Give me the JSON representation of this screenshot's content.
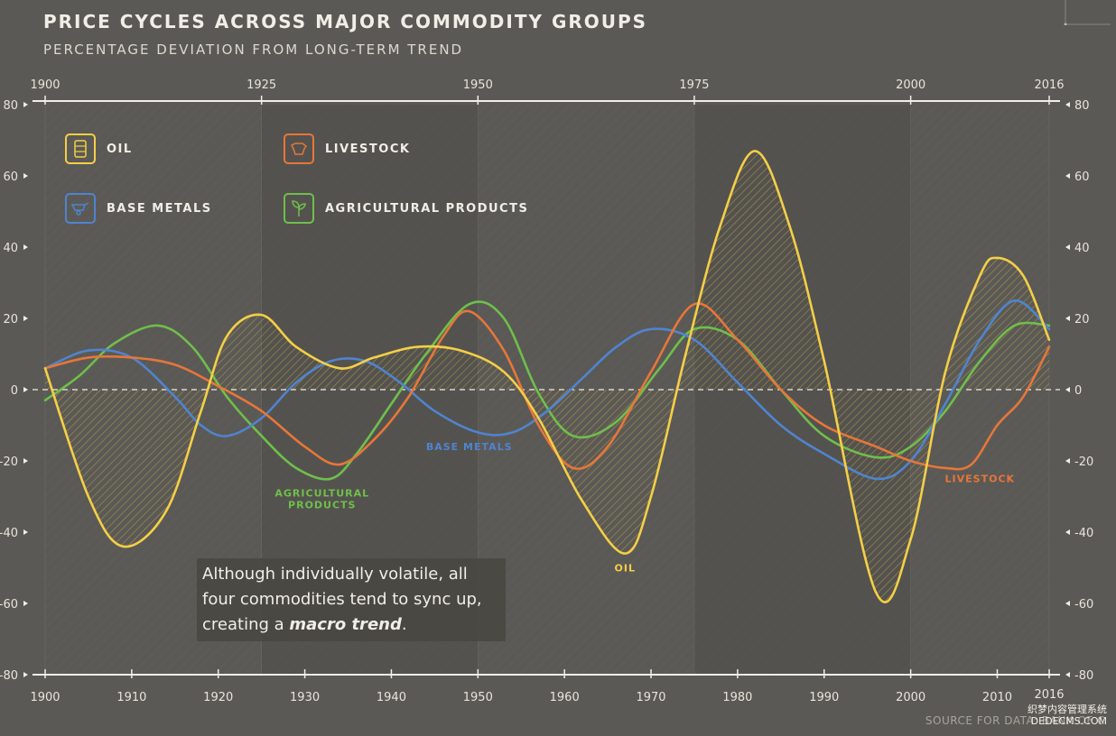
{
  "title": "PRICE CYCLES ACROSS MAJOR COMMODITY GROUPS",
  "subtitle": "PERCENTAGE DEVIATION FROM LONG-TERM TREND",
  "callout": {
    "line1": "Although individually volatile, all",
    "line2": "four commodities tend to sync up,",
    "line3_pre": "creating a ",
    "line3_bold": "macro trend",
    "line3_post": "."
  },
  "source": "SOURCE FOR DATA: BANK OF C",
  "watermark": {
    "line1": "织梦内容管理系统",
    "line2": "DEDECMS.COM"
  },
  "legend": [
    {
      "key": "oil",
      "label": "OIL",
      "icon": "oil-barrel-icon"
    },
    {
      "key": "livestock",
      "label": "LIVESTOCK",
      "icon": "cow-icon"
    },
    {
      "key": "base_metals",
      "label": "BASE METALS",
      "icon": "wheelbarrow-icon"
    },
    {
      "key": "agri",
      "label": "AGRICULTURAL PRODUCTS",
      "icon": "plant-icon"
    }
  ],
  "colors": {
    "oil": "#f4cf47",
    "livestock": "#e7763a",
    "base_metals": "#4f84cf",
    "agri": "#6fbf4b",
    "background": "#5b5955"
  },
  "chart_data": {
    "type": "line",
    "title": "PRICE CYCLES ACROSS MAJOR COMMODITY GROUPS",
    "subtitle": "PERCENTAGE DEVIATION FROM LONG-TERM TREND",
    "xlim": [
      1900,
      2016
    ],
    "ylim": [
      -80,
      80
    ],
    "top_ticks": [
      "1900",
      "1925",
      "1950",
      "1975",
      "2000",
      "2016"
    ],
    "top_tick_values": [
      1900,
      1925,
      1950,
      1975,
      2000,
      2016
    ],
    "bottom_ticks": [
      "1900",
      "1910",
      "1920",
      "1930",
      "1940",
      "1950",
      "1960",
      "1970",
      "1980",
      "1990",
      "2000",
      "2010",
      "2016"
    ],
    "bottom_tick_values": [
      1900,
      1910,
      1920,
      1930,
      1940,
      1950,
      1960,
      1970,
      1980,
      1990,
      2000,
      2010,
      2016
    ],
    "left_y_ticks": [
      "80",
      "60",
      "40",
      "20",
      "0",
      "-20",
      "-40",
      "-60",
      "-80"
    ],
    "right_y_ticks": [
      "80",
      "60",
      "40",
      "20",
      "0",
      "-20",
      "-40",
      "-60",
      "-80"
    ],
    "y_tick_values": [
      80,
      60,
      40,
      20,
      0,
      -20,
      -40,
      -60,
      -80
    ],
    "reference_line": 0,
    "series": [
      {
        "key": "oil",
        "name": "OIL",
        "label_text": "OIL",
        "label_at": [
          1967,
          -51
        ],
        "x": [
          1900,
          1905,
          1909,
          1914,
          1918,
          1921,
          1925,
          1929,
          1934,
          1938,
          1943,
          1948,
          1953,
          1957,
          1962,
          1967,
          1970,
          1974,
          1978,
          1982,
          1986,
          1990,
          1996,
          2000,
          2004,
          2008,
          2010,
          2013,
          2016
        ],
        "y": [
          6,
          -30,
          -44,
          -34,
          -6,
          15,
          21,
          12,
          6,
          9,
          12,
          11,
          5,
          -8,
          -31,
          -46,
          -30,
          10,
          46,
          67,
          46,
          8,
          -57,
          -42,
          5,
          32,
          37,
          32,
          14
        ]
      },
      {
        "key": "livestock",
        "name": "LIVESTOCK",
        "label_text": "LIVESTOCK",
        "label_at": [
          2008,
          -26
        ],
        "x": [
          1900,
          1905,
          1910,
          1915,
          1920,
          1925,
          1930,
          1934,
          1938,
          1942,
          1946,
          1949,
          1953,
          1957,
          1961,
          1965,
          1970,
          1975,
          1980,
          1985,
          1990,
          1996,
          2000,
          2004,
          2007,
          2010,
          2013,
          2016
        ],
        "y": [
          6,
          9,
          9,
          7,
          1,
          -6,
          -16,
          -21,
          -14,
          -2,
          15,
          22,
          11,
          -10,
          -22,
          -16,
          5,
          24,
          14,
          0,
          -10,
          -16,
          -20,
          -22,
          -21,
          -10,
          -2,
          12
        ]
      },
      {
        "key": "base_metals",
        "name": "BASE METALS",
        "label_text": "BASE METALS",
        "label_at": [
          1949,
          -17
        ],
        "x": [
          1900,
          1905,
          1910,
          1915,
          1918,
          1921,
          1925,
          1929,
          1933,
          1937,
          1941,
          1945,
          1950,
          1954,
          1958,
          1962,
          1966,
          1970,
          1975,
          1980,
          1985,
          1990,
          1996,
          2000,
          2004,
          2008,
          2012,
          2016
        ],
        "y": [
          6,
          11,
          9,
          -2,
          -10,
          -13,
          -8,
          2,
          8,
          8,
          2,
          -6,
          -12,
          -12,
          -6,
          3,
          12,
          17,
          14,
          2,
          -10,
          -18,
          -25,
          -20,
          -4,
          14,
          25,
          17
        ]
      },
      {
        "key": "agri",
        "name": "AGRICULTURAL PRODUCTS",
        "label_text_lines": [
          "AGRICULTURAL",
          "PRODUCTS"
        ],
        "label_at": [
          1932,
          -30
        ],
        "x": [
          1900,
          1904,
          1908,
          1913,
          1917,
          1921,
          1925,
          1929,
          1933,
          1936,
          1940,
          1944,
          1949,
          1953,
          1957,
          1961,
          1966,
          1971,
          1975,
          1980,
          1985,
          1990,
          1996,
          2000,
          2004,
          2008,
          2012,
          2016
        ],
        "y": [
          -3,
          4,
          13,
          18,
          12,
          -2,
          -13,
          -22,
          -25,
          -18,
          -4,
          10,
          24,
          20,
          -1,
          -13,
          -9,
          6,
          17,
          14,
          0,
          -13,
          -19,
          -16,
          -6,
          8,
          18,
          18
        ]
      }
    ]
  }
}
